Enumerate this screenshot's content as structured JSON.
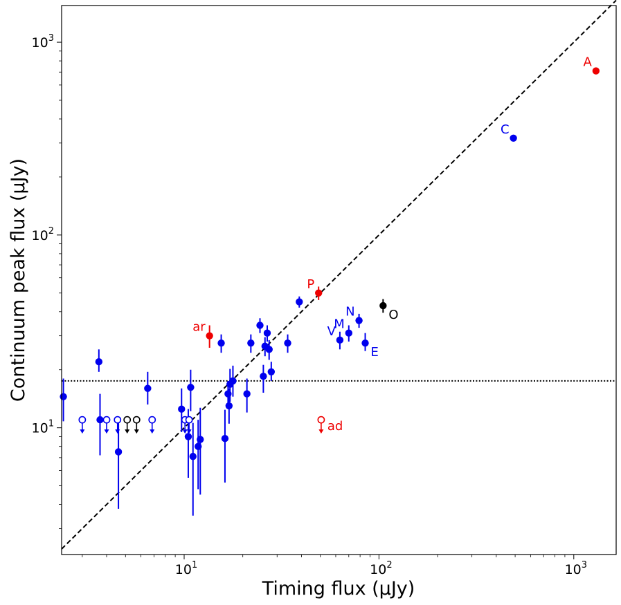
{
  "chart_data": {
    "type": "scatter",
    "title": "",
    "xlabel": "Timing flux (μJy)",
    "ylabel": "Continuum peak flux (μJy)",
    "xscale": "log",
    "yscale": "log",
    "xlim": [
      2.35,
      1650
    ],
    "ylim": [
      2.2,
      1550
    ],
    "x_major_ticks": [
      10,
      100,
      1000
    ],
    "x_tick_labels": [
      {
        "base": "10",
        "exp": "1"
      },
      {
        "base": "10",
        "exp": "2"
      },
      {
        "base": "10",
        "exp": "3"
      }
    ],
    "y_major_ticks": [
      10,
      100,
      1000
    ],
    "y_tick_labels": [
      {
        "base": "10",
        "exp": "1"
      },
      {
        "base": "10",
        "exp": "2"
      },
      {
        "base": "10",
        "exp": "3"
      }
    ],
    "reference_lines": [
      {
        "name": "one-to-one",
        "style": "dashed",
        "color": "#000000",
        "x": [
          2.35,
          1650
        ],
        "y": [
          2.35,
          1650
        ]
      },
      {
        "name": "threshold",
        "style": "dotted",
        "color": "#000000",
        "y_value": 17.5
      }
    ],
    "colors": {
      "blue": "#0000ee",
      "red": "#ee0000",
      "black": "#000000"
    },
    "detections": [
      {
        "label": "A",
        "color": "red",
        "x": 1300,
        "y": 710,
        "ylo": 710,
        "yhi": 710,
        "label_pos": "upper-left"
      },
      {
        "label": "C",
        "color": "blue",
        "x": 490,
        "y": 318,
        "ylo": 318,
        "yhi": 318,
        "label_pos": "upper-left"
      },
      {
        "label": "P",
        "color": "red",
        "x": 49,
        "y": 50,
        "ylo": 46,
        "yhi": 54,
        "label_pos": "upper-left"
      },
      {
        "label": "ar",
        "color": "red",
        "x": 13.5,
        "y": 30,
        "ylo": 26,
        "yhi": 34,
        "label_pos": "upper-left"
      },
      {
        "label": "O",
        "color": "black",
        "x": 105,
        "y": 43,
        "ylo": 39.5,
        "yhi": 46.5,
        "label_pos": "lower-right"
      },
      {
        "label": "N",
        "color": "blue",
        "x": 79,
        "y": 36,
        "ylo": 33,
        "yhi": 39,
        "label_pos": "upper-left"
      },
      {
        "label": "M",
        "color": "blue",
        "x": 70,
        "y": 31,
        "ylo": 28,
        "yhi": 34,
        "label_pos": "upper-left"
      },
      {
        "label": "V",
        "color": "blue",
        "x": 63,
        "y": 28.5,
        "ylo": 25.5,
        "yhi": 31.5,
        "label_pos": "upper-left"
      },
      {
        "label": "E",
        "color": "blue",
        "x": 85,
        "y": 27.5,
        "ylo": 25,
        "yhi": 31,
        "label_pos": "lower-right"
      },
      {
        "label": "",
        "color": "blue",
        "x": 39,
        "y": 45,
        "ylo": 42,
        "yhi": 48
      },
      {
        "label": "",
        "color": "blue",
        "x": 24.5,
        "y": 34,
        "ylo": 31,
        "yhi": 37
      },
      {
        "label": "",
        "color": "blue",
        "x": 26.7,
        "y": 31,
        "ylo": 28,
        "yhi": 34
      },
      {
        "label": "",
        "color": "blue",
        "x": 15.5,
        "y": 27.5,
        "ylo": 24.5,
        "yhi": 30.5
      },
      {
        "label": "",
        "color": "blue",
        "x": 22,
        "y": 27.5,
        "ylo": 24.5,
        "yhi": 30.5
      },
      {
        "label": "",
        "color": "blue",
        "x": 34,
        "y": 27.5,
        "ylo": 24.5,
        "yhi": 30.5
      },
      {
        "label": "",
        "color": "blue",
        "x": 26,
        "y": 26.5,
        "ylo": 23.5,
        "yhi": 29.5
      },
      {
        "label": "",
        "color": "blue",
        "x": 27.3,
        "y": 25.5,
        "ylo": 22.5,
        "yhi": 28.5
      },
      {
        "label": "",
        "color": "blue",
        "x": 3.65,
        "y": 22,
        "ylo": 19.5,
        "yhi": 25.5
      },
      {
        "label": "",
        "color": "blue",
        "x": 28,
        "y": 19.5,
        "ylo": 17.5,
        "yhi": 22
      },
      {
        "label": "",
        "color": "blue",
        "x": 25.5,
        "y": 18.5,
        "ylo": 15.2,
        "yhi": 21.2
      },
      {
        "label": "",
        "color": "blue",
        "x": 17.8,
        "y": 17.5,
        "ylo": 14.5,
        "yhi": 21
      },
      {
        "label": "",
        "color": "blue",
        "x": 17.2,
        "y": 16.8,
        "ylo": 13.6,
        "yhi": 20.2
      },
      {
        "label": "",
        "color": "blue",
        "x": 10.8,
        "y": 16.2,
        "ylo": 12.2,
        "yhi": 20
      },
      {
        "label": "",
        "color": "blue",
        "x": 6.5,
        "y": 16,
        "ylo": 13.2,
        "yhi": 19.5
      },
      {
        "label": "",
        "color": "blue",
        "x": 16.8,
        "y": 15,
        "ylo": 12.8,
        "yhi": 17.5
      },
      {
        "label": "",
        "color": "blue",
        "x": 21,
        "y": 15,
        "ylo": 12,
        "yhi": 18
      },
      {
        "label": "",
        "color": "blue",
        "x": 2.4,
        "y": 14.5,
        "ylo": 10.8,
        "yhi": 18
      },
      {
        "label": "",
        "color": "blue",
        "x": 17,
        "y": 13,
        "ylo": 10.5,
        "yhi": 16
      },
      {
        "label": "",
        "color": "blue",
        "x": 9.7,
        "y": 12.5,
        "ylo": 9.5,
        "yhi": 16
      },
      {
        "label": "",
        "color": "blue",
        "x": 3.7,
        "y": 11,
        "ylo": 7.2,
        "yhi": 15
      },
      {
        "label": "",
        "color": "blue",
        "x": 10.5,
        "y": 9,
        "ylo": 5.5,
        "yhi": 12.5
      },
      {
        "label": "",
        "color": "blue",
        "x": 12.1,
        "y": 8.7,
        "ylo": 4.5,
        "yhi": 12.7
      },
      {
        "label": "",
        "color": "blue",
        "x": 16.2,
        "y": 8.8,
        "ylo": 5.2,
        "yhi": 12.4
      },
      {
        "label": "",
        "color": "blue",
        "x": 11.8,
        "y": 8.0,
        "ylo": 4.8,
        "yhi": 11
      },
      {
        "label": "",
        "color": "blue",
        "x": 4.6,
        "y": 7.5,
        "ylo": 3.8,
        "yhi": 11
      },
      {
        "label": "",
        "color": "blue",
        "x": 11.1,
        "y": 7.1,
        "ylo": 3.5,
        "yhi": 10.6
      }
    ],
    "upper_limits": [
      {
        "label": "",
        "color": "blue",
        "x": 3.0,
        "y": 11
      },
      {
        "label": "",
        "color": "blue",
        "x": 4.0,
        "y": 11
      },
      {
        "label": "",
        "color": "blue",
        "x": 4.55,
        "y": 11
      },
      {
        "label": "",
        "color": "black",
        "x": 5.1,
        "y": 11
      },
      {
        "label": "",
        "color": "black",
        "x": 5.7,
        "y": 11
      },
      {
        "label": "",
        "color": "blue",
        "x": 6.85,
        "y": 11
      },
      {
        "label": "",
        "color": "blue",
        "x": 10.1,
        "y": 11
      },
      {
        "label": "",
        "color": "blue",
        "x": 10.6,
        "y": 11
      },
      {
        "label": "ad",
        "color": "red",
        "x": 50.5,
        "y": 11,
        "label_pos": "right"
      }
    ]
  }
}
